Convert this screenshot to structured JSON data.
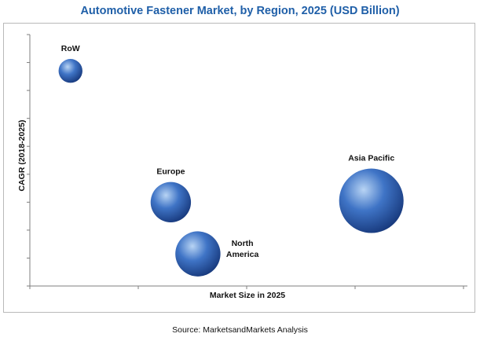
{
  "chart_data": {
    "type": "scatter",
    "title": "Automotive Fastener Market, by Region, 2025 (USD Billion)",
    "xlabel": "Market Size in 2025",
    "ylabel": "CAGR (2018-2025)",
    "xlim": [
      0,
      8
    ],
    "ylim": [
      0,
      9
    ],
    "x_tick_count": 4,
    "y_tick_count": 9,
    "grid": false,
    "points": [
      {
        "name": "RoW",
        "label_lines": [
          "RoW"
        ],
        "x": 0.75,
        "y": 7.7,
        "size": 0.35,
        "label_position": "above"
      },
      {
        "name": "Europe",
        "label_lines": [
          "Europe"
        ],
        "x": 2.6,
        "y": 3.0,
        "size": 1.0,
        "label_position": "above"
      },
      {
        "name": "North America",
        "label_lines": [
          "North",
          "America"
        ],
        "x": 3.1,
        "y": 1.15,
        "size": 1.25,
        "label_position": "right"
      },
      {
        "name": "Asia Pacific",
        "label_lines": [
          "Asia Pacific"
        ],
        "x": 6.3,
        "y": 3.05,
        "size": 2.55,
        "label_position": "above"
      }
    ]
  },
  "source": "Source: MarketsandMarkets Analysis",
  "colors": {
    "bubble_light": "#b8d4f4",
    "bubble_mid": "#3f74c6",
    "bubble_dark": "#16377a",
    "title": "#1f5fa8"
  }
}
